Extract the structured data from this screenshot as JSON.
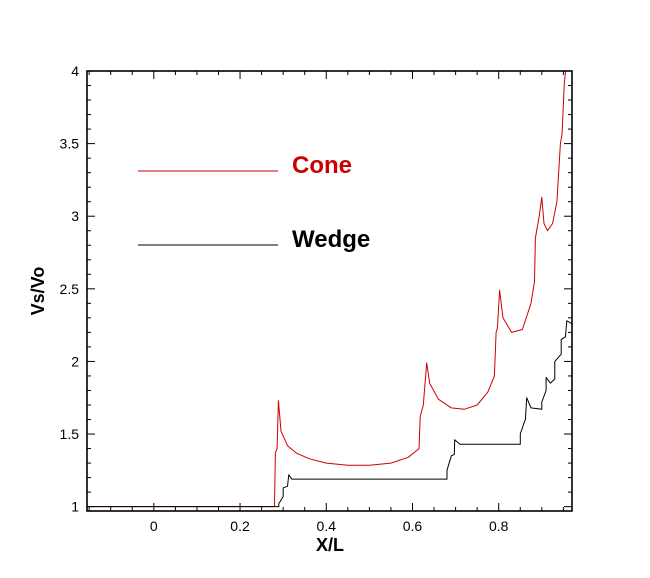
{
  "chart_data": {
    "type": "line",
    "xlabel": "X/L",
    "ylabel": "Vs/Vo",
    "xlim": [
      -0.155,
      0.97
    ],
    "ylim": [
      0.97,
      4.0
    ],
    "x_ticks": [
      0,
      0.2,
      0.4,
      0.6,
      0.8
    ],
    "x_tick_labels": [
      "0",
      "0.2",
      "0.4",
      "0.6",
      "0.8"
    ],
    "y_ticks": [
      1,
      1.5,
      2,
      2.5,
      3,
      3.5,
      4
    ],
    "y_tick_labels": [
      "1",
      "1.5",
      "2",
      "2.5",
      "3",
      "3.5",
      "4"
    ],
    "legend_placement": "upper-left inside",
    "series": [
      {
        "name": "Cone",
        "color": "#cc0000",
        "points": [
          [
            -0.155,
            1.0
          ],
          [
            0.28,
            1.0
          ],
          [
            0.282,
            1.37
          ],
          [
            0.286,
            1.4
          ],
          [
            0.289,
            1.73
          ],
          [
            0.295,
            1.52
          ],
          [
            0.31,
            1.42
          ],
          [
            0.33,
            1.37
          ],
          [
            0.36,
            1.33
          ],
          [
            0.4,
            1.3
          ],
          [
            0.45,
            1.285
          ],
          [
            0.5,
            1.285
          ],
          [
            0.55,
            1.3
          ],
          [
            0.59,
            1.34
          ],
          [
            0.615,
            1.4
          ],
          [
            0.618,
            1.62
          ],
          [
            0.625,
            1.7
          ],
          [
            0.633,
            1.99
          ],
          [
            0.64,
            1.85
          ],
          [
            0.66,
            1.74
          ],
          [
            0.69,
            1.68
          ],
          [
            0.72,
            1.67
          ],
          [
            0.75,
            1.7
          ],
          [
            0.775,
            1.79
          ],
          [
            0.79,
            1.9
          ],
          [
            0.794,
            2.2
          ],
          [
            0.797,
            2.23
          ],
          [
            0.802,
            2.49
          ],
          [
            0.81,
            2.3
          ],
          [
            0.83,
            2.2
          ],
          [
            0.855,
            2.22
          ],
          [
            0.875,
            2.4
          ],
          [
            0.883,
            2.55
          ],
          [
            0.885,
            2.85
          ],
          [
            0.894,
            3.0
          ],
          [
            0.9,
            3.13
          ],
          [
            0.905,
            2.95
          ],
          [
            0.913,
            2.9
          ],
          [
            0.925,
            2.95
          ],
          [
            0.935,
            3.1
          ],
          [
            0.943,
            3.5
          ],
          [
            0.947,
            3.57
          ],
          [
            0.952,
            3.9
          ],
          [
            0.955,
            4.0
          ]
        ]
      },
      {
        "name": "Wedge",
        "color": "#000000",
        "points": [
          [
            -0.155,
            1.0
          ],
          [
            0.29,
            1.0
          ],
          [
            0.29,
            1.02
          ],
          [
            0.3,
            1.07
          ],
          [
            0.3,
            1.13
          ],
          [
            0.31,
            1.14
          ],
          [
            0.313,
            1.22
          ],
          [
            0.32,
            1.19
          ],
          [
            0.4,
            1.19
          ],
          [
            0.5,
            1.19
          ],
          [
            0.6,
            1.19
          ],
          [
            0.68,
            1.19
          ],
          [
            0.68,
            1.25
          ],
          [
            0.69,
            1.35
          ],
          [
            0.697,
            1.36
          ],
          [
            0.698,
            1.46
          ],
          [
            0.71,
            1.43
          ],
          [
            0.8,
            1.43
          ],
          [
            0.85,
            1.43
          ],
          [
            0.85,
            1.5
          ],
          [
            0.858,
            1.57
          ],
          [
            0.862,
            1.6
          ],
          [
            0.865,
            1.75
          ],
          [
            0.875,
            1.68
          ],
          [
            0.9,
            1.67
          ],
          [
            0.9,
            1.72
          ],
          [
            0.91,
            1.8
          ],
          [
            0.91,
            1.89
          ],
          [
            0.92,
            1.85
          ],
          [
            0.93,
            1.88
          ],
          [
            0.93,
            2.0
          ],
          [
            0.945,
            2.05
          ],
          [
            0.945,
            2.15
          ],
          [
            0.955,
            2.17
          ],
          [
            0.958,
            2.28
          ],
          [
            0.97,
            2.26
          ]
        ]
      }
    ]
  }
}
